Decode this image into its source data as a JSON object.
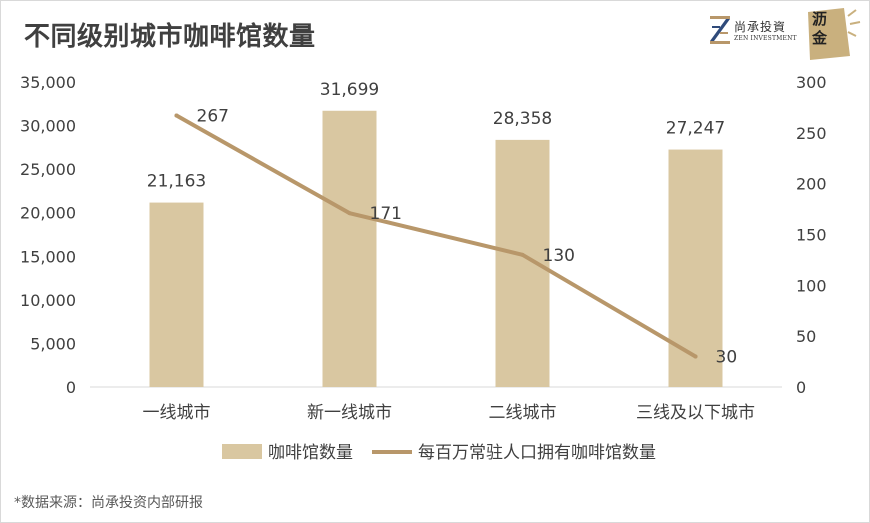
{
  "title": "不同级别城市咖啡馆数量",
  "logos": {
    "zen_cn": "尚承投資",
    "zen_en": "ZEN INVESTMENT",
    "lijin": "沥金"
  },
  "footnote": "*数据来源：尚承投资内部研报",
  "colors": {
    "bar": "#d9c7a1",
    "line": "#b8976a",
    "text": "#404040",
    "axis": "#d9d9d9"
  },
  "chart_data": {
    "type": "bar",
    "categories": [
      "一线城市",
      "新一线城市",
      "二线城市",
      "三线及以下城市"
    ],
    "series": [
      {
        "name": "咖啡馆数量",
        "type": "bar",
        "axis": "left",
        "values": [
          21163,
          31699,
          28358,
          27247
        ],
        "labels": [
          "21,163",
          "31,699",
          "28,358",
          "27,247"
        ]
      },
      {
        "name": "每百万常驻人口拥有咖啡馆数量",
        "type": "line",
        "axis": "right",
        "values": [
          267,
          171,
          130,
          30
        ],
        "labels": [
          "267",
          "171",
          "130",
          "30"
        ]
      }
    ],
    "y_left": {
      "min": 0,
      "max": 35000,
      "ticks": [
        "0",
        "5,000",
        "10,000",
        "15,000",
        "20,000",
        "25,000",
        "30,000",
        "35,000"
      ]
    },
    "y_right": {
      "min": 0,
      "max": 300,
      "ticks": [
        "0",
        "50",
        "100",
        "150",
        "200",
        "250",
        "300"
      ]
    },
    "legend_position": "bottom",
    "grid": false
  }
}
